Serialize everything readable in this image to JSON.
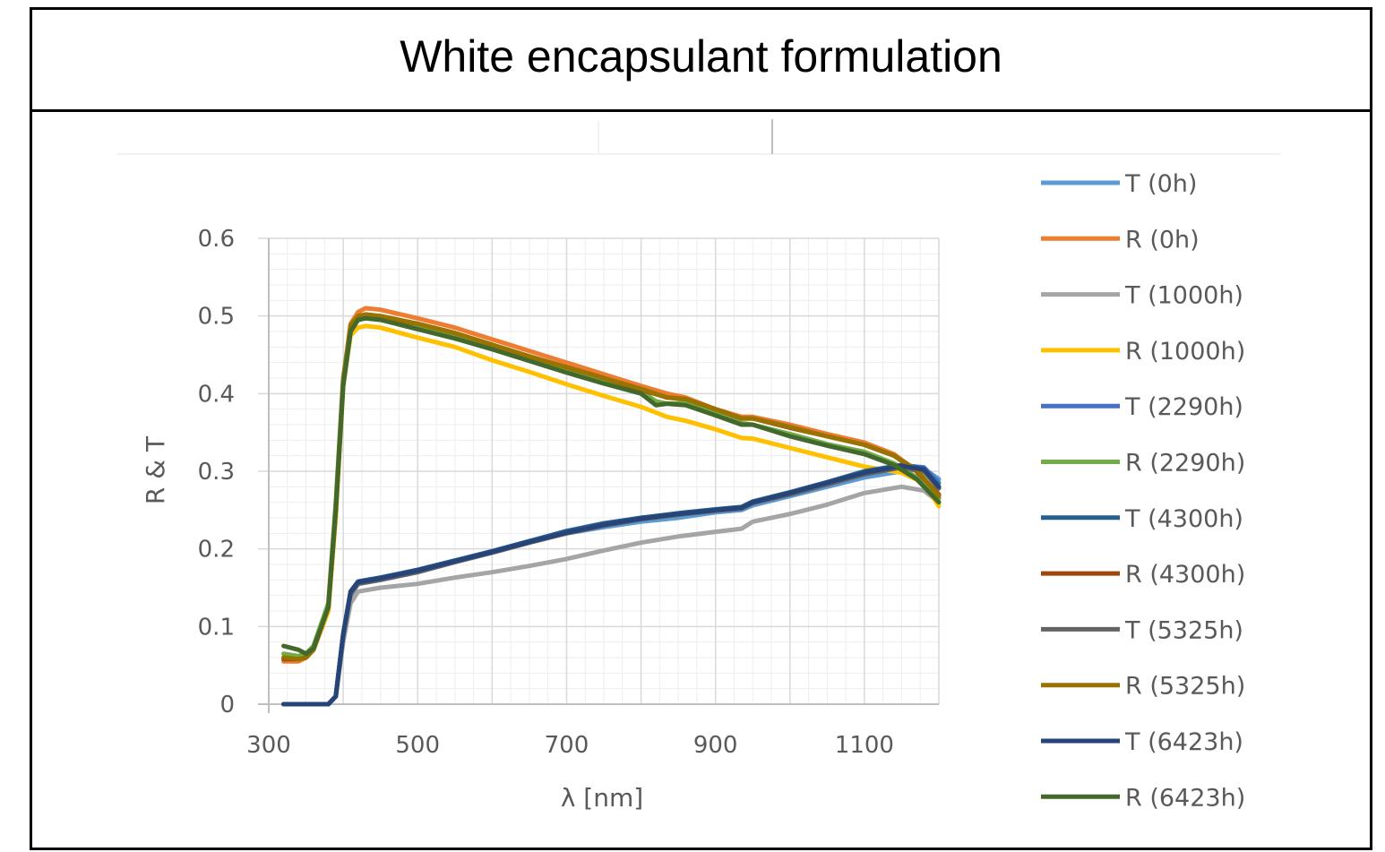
{
  "title": "White encapsulant formulation",
  "chart_data": {
    "type": "line",
    "title": "White encapsulant formulation",
    "xlabel": "λ [nm]",
    "ylabel": "R & T",
    "xlim": [
      300,
      1200
    ],
    "ylim": [
      0,
      0.6
    ],
    "x_ticks": [
      "300",
      "500",
      "700",
      "900",
      "1100"
    ],
    "y_ticks": [
      "0",
      "0.1",
      "0.2",
      "0.3",
      "0.4",
      "0.5",
      "0.6"
    ],
    "grid": true,
    "legend_position": "right",
    "series": [
      {
        "name": "T (0h)",
        "color": "#5b9bd5",
        "x": [
          320,
          340,
          360,
          380,
          390,
          400,
          410,
          420,
          450,
          500,
          550,
          600,
          650,
          700,
          750,
          800,
          850,
          900,
          935,
          950,
          1000,
          1050,
          1100,
          1150,
          1180,
          1200
        ],
        "y": [
          0,
          0,
          0,
          0,
          0.01,
          0.09,
          0.14,
          0.155,
          0.16,
          0.172,
          0.185,
          0.197,
          0.21,
          0.22,
          0.228,
          0.235,
          0.24,
          0.247,
          0.25,
          0.256,
          0.268,
          0.28,
          0.292,
          0.3,
          0.303,
          0.29
        ]
      },
      {
        "name": "R (0h)",
        "color": "#ed7d31",
        "x": [
          320,
          340,
          350,
          360,
          380,
          390,
          400,
          410,
          420,
          430,
          450,
          500,
          550,
          600,
          650,
          700,
          750,
          800,
          835,
          860,
          900,
          935,
          950,
          1000,
          1050,
          1100,
          1140,
          1170,
          1200
        ],
        "y": [
          0.055,
          0.055,
          0.06,
          0.07,
          0.12,
          0.25,
          0.42,
          0.49,
          0.505,
          0.51,
          0.508,
          0.497,
          0.485,
          0.47,
          0.455,
          0.44,
          0.425,
          0.41,
          0.4,
          0.395,
          0.38,
          0.37,
          0.37,
          0.36,
          0.348,
          0.337,
          0.322,
          0.3,
          0.265
        ]
      },
      {
        "name": "T (1000h)",
        "color": "#a5a5a5",
        "x": [
          320,
          340,
          360,
          380,
          390,
          400,
          410,
          420,
          450,
          500,
          550,
          600,
          650,
          700,
          750,
          800,
          850,
          900,
          935,
          950,
          1000,
          1050,
          1100,
          1150,
          1180,
          1200
        ],
        "y": [
          0,
          0,
          0,
          0,
          0.01,
          0.08,
          0.13,
          0.145,
          0.15,
          0.155,
          0.163,
          0.17,
          0.178,
          0.187,
          0.198,
          0.208,
          0.216,
          0.222,
          0.226,
          0.235,
          0.245,
          0.257,
          0.272,
          0.28,
          0.275,
          0.26
        ]
      },
      {
        "name": "R (1000h)",
        "color": "#ffc000",
        "x": [
          320,
          340,
          350,
          360,
          380,
          390,
          400,
          410,
          420,
          430,
          450,
          500,
          550,
          600,
          650,
          700,
          750,
          800,
          835,
          860,
          900,
          935,
          950,
          1000,
          1050,
          1100,
          1150,
          1180,
          1200
        ],
        "y": [
          0.06,
          0.058,
          0.06,
          0.07,
          0.12,
          0.24,
          0.41,
          0.475,
          0.485,
          0.487,
          0.485,
          0.472,
          0.46,
          0.443,
          0.428,
          0.412,
          0.397,
          0.383,
          0.37,
          0.365,
          0.354,
          0.343,
          0.342,
          0.33,
          0.318,
          0.306,
          0.298,
          0.285,
          0.255
        ]
      },
      {
        "name": "T (2290h)",
        "color": "#4472c4",
        "x": [
          320,
          340,
          360,
          380,
          390,
          400,
          410,
          420,
          450,
          500,
          550,
          600,
          650,
          700,
          750,
          800,
          850,
          900,
          935,
          950,
          1000,
          1050,
          1100,
          1150,
          1180,
          1200
        ],
        "y": [
          0,
          0,
          0,
          0,
          0.01,
          0.09,
          0.145,
          0.158,
          0.163,
          0.173,
          0.185,
          0.197,
          0.21,
          0.222,
          0.232,
          0.24,
          0.245,
          0.25,
          0.253,
          0.26,
          0.272,
          0.285,
          0.298,
          0.308,
          0.305,
          0.285
        ]
      },
      {
        "name": "R (2290h)",
        "color": "#70ad47",
        "x": [
          320,
          340,
          350,
          360,
          380,
          390,
          400,
          410,
          420,
          430,
          450,
          500,
          550,
          600,
          650,
          700,
          750,
          800,
          820,
          835,
          860,
          900,
          935,
          950,
          1000,
          1050,
          1100,
          1140,
          1170,
          1200
        ],
        "y": [
          0.065,
          0.062,
          0.065,
          0.075,
          0.13,
          0.26,
          0.42,
          0.485,
          0.495,
          0.497,
          0.495,
          0.485,
          0.474,
          0.46,
          0.445,
          0.43,
          0.415,
          0.403,
          0.39,
          0.387,
          0.388,
          0.375,
          0.362,
          0.36,
          0.348,
          0.335,
          0.325,
          0.31,
          0.292,
          0.265
        ]
      },
      {
        "name": "T (4300h)",
        "color": "#255e91",
        "x": [
          320,
          340,
          360,
          380,
          390,
          400,
          410,
          420,
          450,
          500,
          550,
          600,
          650,
          700,
          750,
          800,
          850,
          900,
          935,
          950,
          1000,
          1050,
          1100,
          1150,
          1180,
          1200
        ],
        "y": [
          0,
          0,
          0,
          0,
          0.01,
          0.09,
          0.145,
          0.158,
          0.163,
          0.173,
          0.185,
          0.197,
          0.21,
          0.223,
          0.233,
          0.24,
          0.246,
          0.251,
          0.254,
          0.261,
          0.273,
          0.286,
          0.3,
          0.308,
          0.303,
          0.28
        ]
      },
      {
        "name": "R (4300h)",
        "color": "#9e480e",
        "x": [
          320,
          340,
          350,
          360,
          380,
          390,
          400,
          410,
          420,
          430,
          450,
          500,
          550,
          600,
          650,
          700,
          750,
          800,
          835,
          860,
          900,
          935,
          950,
          1000,
          1050,
          1100,
          1140,
          1170,
          1200
        ],
        "y": [
          0.058,
          0.058,
          0.06,
          0.07,
          0.125,
          0.25,
          0.415,
          0.485,
          0.498,
          0.5,
          0.498,
          0.49,
          0.478,
          0.463,
          0.448,
          0.434,
          0.42,
          0.405,
          0.395,
          0.393,
          0.38,
          0.368,
          0.368,
          0.356,
          0.345,
          0.334,
          0.32,
          0.3,
          0.27
        ]
      },
      {
        "name": "T (5325h)",
        "color": "#636363",
        "x": [
          320,
          340,
          360,
          380,
          390,
          400,
          410,
          420,
          450,
          500,
          550,
          600,
          650,
          700,
          750,
          800,
          850,
          900,
          935,
          950,
          1000,
          1050,
          1100,
          1150,
          1180,
          1200
        ],
        "y": [
          0,
          0,
          0,
          0,
          0.01,
          0.088,
          0.142,
          0.155,
          0.16,
          0.17,
          0.183,
          0.195,
          0.208,
          0.22,
          0.23,
          0.238,
          0.244,
          0.249,
          0.252,
          0.259,
          0.27,
          0.283,
          0.296,
          0.305,
          0.3,
          0.278
        ]
      },
      {
        "name": "R (5325h)",
        "color": "#997300",
        "x": [
          320,
          340,
          350,
          360,
          380,
          390,
          400,
          410,
          420,
          430,
          450,
          500,
          550,
          600,
          650,
          700,
          750,
          800,
          835,
          860,
          900,
          935,
          950,
          1000,
          1050,
          1100,
          1140,
          1170,
          1200
        ],
        "y": [
          0.06,
          0.058,
          0.06,
          0.07,
          0.125,
          0.25,
          0.415,
          0.488,
          0.5,
          0.502,
          0.5,
          0.49,
          0.478,
          0.463,
          0.448,
          0.434,
          0.42,
          0.406,
          0.395,
          0.393,
          0.38,
          0.368,
          0.368,
          0.357,
          0.345,
          0.334,
          0.32,
          0.302,
          0.268
        ]
      },
      {
        "name": "T (6423h)",
        "color": "#264478",
        "x": [
          320,
          340,
          360,
          380,
          390,
          400,
          410,
          420,
          450,
          500,
          550,
          600,
          650,
          700,
          750,
          800,
          850,
          900,
          935,
          950,
          1000,
          1050,
          1100,
          1150,
          1180,
          1200
        ],
        "y": [
          0,
          0,
          0,
          0,
          0.01,
          0.09,
          0.145,
          0.157,
          0.162,
          0.172,
          0.184,
          0.196,
          0.209,
          0.221,
          0.231,
          0.239,
          0.245,
          0.25,
          0.253,
          0.26,
          0.272,
          0.285,
          0.298,
          0.307,
          0.302,
          0.28
        ]
      },
      {
        "name": "R (6423h)",
        "color": "#43682b",
        "x": [
          320,
          340,
          350,
          360,
          380,
          390,
          400,
          410,
          420,
          430,
          450,
          500,
          550,
          600,
          650,
          700,
          750,
          800,
          820,
          835,
          860,
          900,
          935,
          950,
          1000,
          1050,
          1100,
          1140,
          1170,
          1200
        ],
        "y": [
          0.075,
          0.07,
          0.065,
          0.072,
          0.125,
          0.25,
          0.41,
          0.48,
          0.495,
          0.497,
          0.495,
          0.483,
          0.471,
          0.457,
          0.442,
          0.427,
          0.413,
          0.4,
          0.385,
          0.387,
          0.385,
          0.372,
          0.36,
          0.36,
          0.345,
          0.333,
          0.322,
          0.308,
          0.29,
          0.26
        ]
      }
    ]
  }
}
